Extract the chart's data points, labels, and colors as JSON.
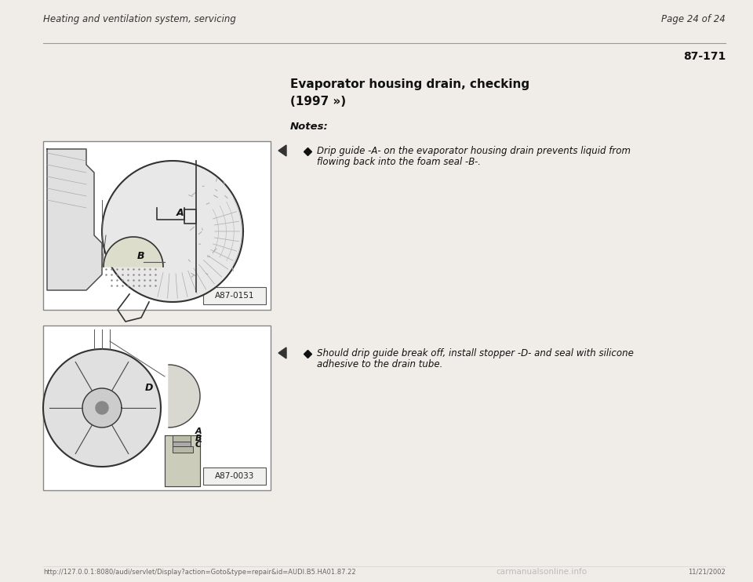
{
  "background_color": "#f0ede8",
  "header_left": "Heating and ventilation system, servicing",
  "header_right": "Page 24 of 24",
  "page_number": "87-171",
  "section_title_line1": "Evaporator housing drain, checking",
  "section_title_line2": "(1997 »)",
  "notes_label": "Notes:",
  "bullet1_line1": "Drip guide -A- on the evaporator housing drain prevents liquid from",
  "bullet1_line2": "flowing back into the foam seal -B-.",
  "bullet2_line1": "Should drip guide break off, install stopper -D- and seal with silicone",
  "bullet2_line2": "adhesive to the drain tube.",
  "img1_label": "A87-0151",
  "img2_label": "A87-0033",
  "footer_url": "http://127.0.0.1:8080/audi/servlet/Display?action=Goto&type=repair&id=AUDI.B5.HA01.87.22",
  "footer_date": "11/21/2002",
  "footer_watermark": "carmanualsonline.info",
  "img_bg": "#ffffff",
  "img_border": "#888888"
}
